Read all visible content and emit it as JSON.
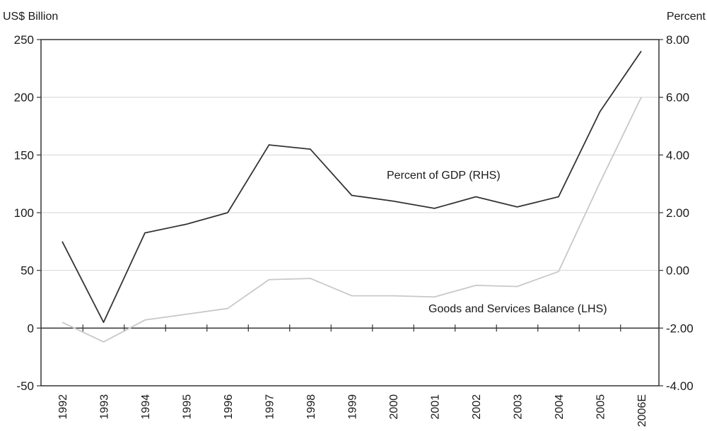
{
  "chart_data": {
    "type": "line",
    "left_axis_title": "US$ Billion",
    "right_axis_title": "Percent",
    "categories": [
      "1992",
      "1993",
      "1994",
      "1995",
      "1996",
      "1997",
      "1998",
      "1999",
      "2000",
      "2001",
      "2002",
      "2003",
      "2004",
      "2005",
      "2006E"
    ],
    "left_ticks": [
      "250",
      "200",
      "150",
      "100",
      "50",
      "0",
      "-50"
    ],
    "right_ticks": [
      "8.00",
      "6.00",
      "4.00",
      "2.00",
      "0.00",
      "-2.00",
      "-4.00"
    ],
    "ylim_left": [
      -50,
      250
    ],
    "ylim_right": [
      -4,
      8
    ],
    "grid": true,
    "series": [
      {
        "name": "Percent of GDP (RHS)",
        "axis": "right",
        "color": "#333333",
        "values": [
          1.0,
          -1.8,
          1.3,
          1.6,
          2.0,
          4.35,
          4.2,
          2.6,
          2.4,
          2.15,
          2.55,
          2.2,
          2.55,
          5.5,
          7.6
        ]
      },
      {
        "name": "Goods and Services Balance (LHS)",
        "axis": "left",
        "color": "#c8c8c8",
        "values": [
          5,
          -12,
          7,
          12,
          17,
          42,
          43,
          28,
          28,
          27,
          37,
          36,
          49,
          126,
          200
        ]
      }
    ]
  }
}
